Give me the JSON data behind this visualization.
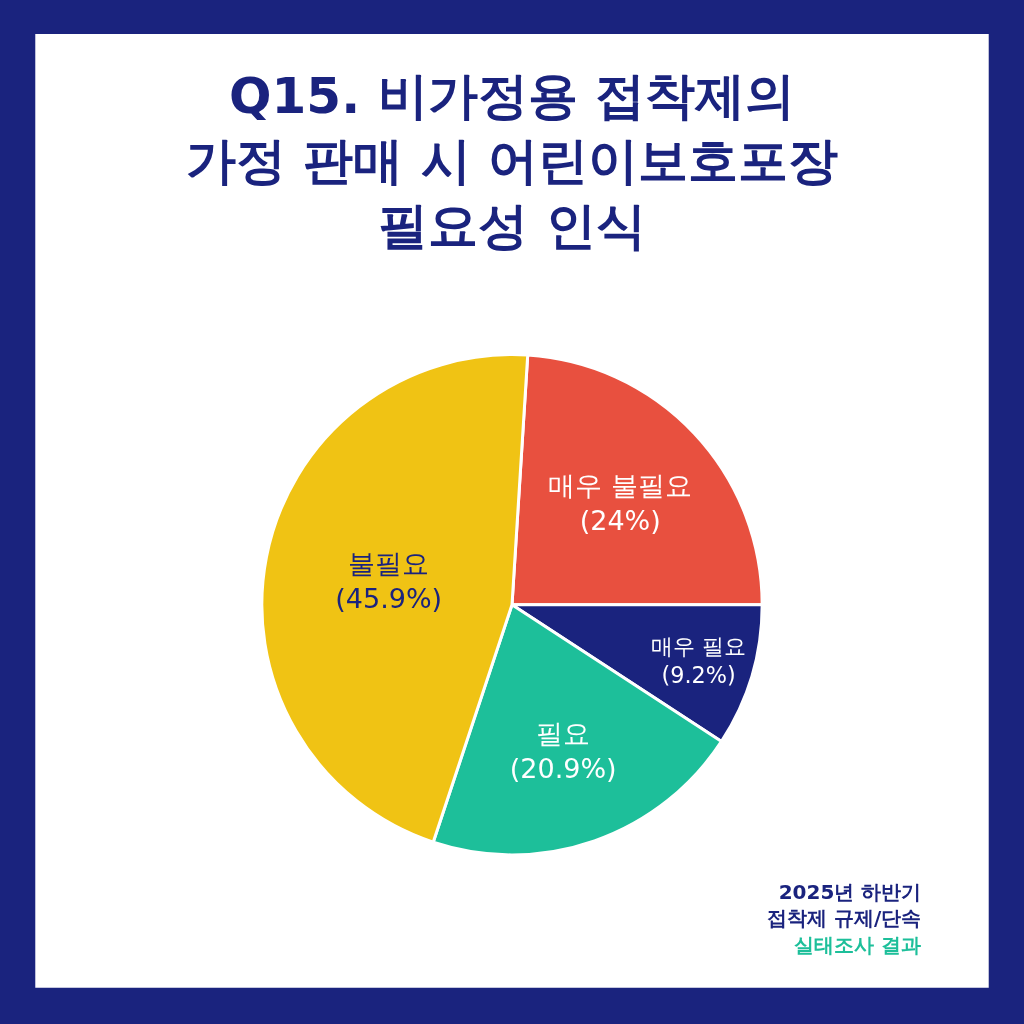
{
  "chart_data": {
    "type": "pie",
    "title": "Q15. 비가정용 접착제의\n가정 판매 시 어린이보호포장\n필요성 인식",
    "categories": [
      "매우 불필요",
      "매우 필요",
      "필요",
      "불필요"
    ],
    "values": [
      24,
      9.2,
      20.9,
      45.9
    ],
    "value_labels": [
      "(24%)",
      "(9.2%)",
      "(20.9%)",
      "(45.9%)"
    ],
    "colors": [
      "#e8503f",
      "#1a237e",
      "#1dbf9a",
      "#f0c314"
    ],
    "annotations": [
      "2025년 하반기\n접착제 규제/단속",
      "실태조사 결과"
    ],
    "legend": false
  }
}
